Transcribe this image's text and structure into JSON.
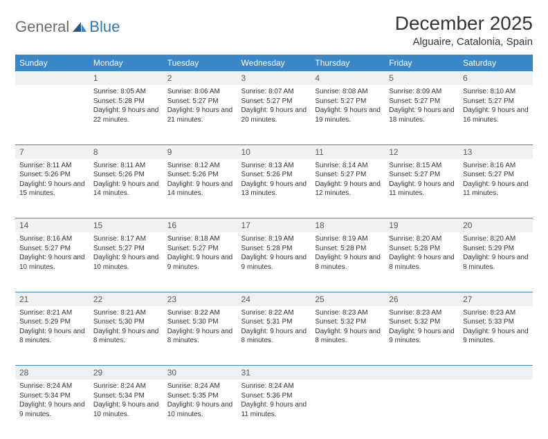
{
  "brand": {
    "part1": "General",
    "part2": "Blue"
  },
  "title": "December 2025",
  "location": "Alguaire, Catalonia, Spain",
  "colors": {
    "header_bg": "#3a87c7",
    "header_text": "#ffffff",
    "daynum_bg": "#eef0f2",
    "rule": "#3a87c7",
    "logo_gray": "#6b6b6b",
    "logo_blue": "#2f78b7"
  },
  "weekdays": [
    "Sunday",
    "Monday",
    "Tuesday",
    "Wednesday",
    "Thursday",
    "Friday",
    "Saturday"
  ],
  "weeks": [
    {
      "nums": [
        "",
        "1",
        "2",
        "3",
        "4",
        "5",
        "6"
      ],
      "cells": [
        {
          "sunrise": "",
          "sunset": "",
          "daylight": ""
        },
        {
          "sunrise": "Sunrise: 8:05 AM",
          "sunset": "Sunset: 5:28 PM",
          "daylight": "Daylight: 9 hours and 22 minutes."
        },
        {
          "sunrise": "Sunrise: 8:06 AM",
          "sunset": "Sunset: 5:27 PM",
          "daylight": "Daylight: 9 hours and 21 minutes."
        },
        {
          "sunrise": "Sunrise: 8:07 AM",
          "sunset": "Sunset: 5:27 PM",
          "daylight": "Daylight: 9 hours and 20 minutes."
        },
        {
          "sunrise": "Sunrise: 8:08 AM",
          "sunset": "Sunset: 5:27 PM",
          "daylight": "Daylight: 9 hours and 19 minutes."
        },
        {
          "sunrise": "Sunrise: 8:09 AM",
          "sunset": "Sunset: 5:27 PM",
          "daylight": "Daylight: 9 hours and 18 minutes."
        },
        {
          "sunrise": "Sunrise: 8:10 AM",
          "sunset": "Sunset: 5:27 PM",
          "daylight": "Daylight: 9 hours and 16 minutes."
        }
      ]
    },
    {
      "nums": [
        "7",
        "8",
        "9",
        "10",
        "11",
        "12",
        "13"
      ],
      "cells": [
        {
          "sunrise": "Sunrise: 8:11 AM",
          "sunset": "Sunset: 5:26 PM",
          "daylight": "Daylight: 9 hours and 15 minutes."
        },
        {
          "sunrise": "Sunrise: 8:11 AM",
          "sunset": "Sunset: 5:26 PM",
          "daylight": "Daylight: 9 hours and 14 minutes."
        },
        {
          "sunrise": "Sunrise: 8:12 AM",
          "sunset": "Sunset: 5:26 PM",
          "daylight": "Daylight: 9 hours and 14 minutes."
        },
        {
          "sunrise": "Sunrise: 8:13 AM",
          "sunset": "Sunset: 5:26 PM",
          "daylight": "Daylight: 9 hours and 13 minutes."
        },
        {
          "sunrise": "Sunrise: 8:14 AM",
          "sunset": "Sunset: 5:27 PM",
          "daylight": "Daylight: 9 hours and 12 minutes."
        },
        {
          "sunrise": "Sunrise: 8:15 AM",
          "sunset": "Sunset: 5:27 PM",
          "daylight": "Daylight: 9 hours and 11 minutes."
        },
        {
          "sunrise": "Sunrise: 8:16 AM",
          "sunset": "Sunset: 5:27 PM",
          "daylight": "Daylight: 9 hours and 11 minutes."
        }
      ]
    },
    {
      "nums": [
        "14",
        "15",
        "16",
        "17",
        "18",
        "19",
        "20"
      ],
      "cells": [
        {
          "sunrise": "Sunrise: 8:16 AM",
          "sunset": "Sunset: 5:27 PM",
          "daylight": "Daylight: 9 hours and 10 minutes."
        },
        {
          "sunrise": "Sunrise: 8:17 AM",
          "sunset": "Sunset: 5:27 PM",
          "daylight": "Daylight: 9 hours and 10 minutes."
        },
        {
          "sunrise": "Sunrise: 8:18 AM",
          "sunset": "Sunset: 5:27 PM",
          "daylight": "Daylight: 9 hours and 9 minutes."
        },
        {
          "sunrise": "Sunrise: 8:19 AM",
          "sunset": "Sunset: 5:28 PM",
          "daylight": "Daylight: 9 hours and 9 minutes."
        },
        {
          "sunrise": "Sunrise: 8:19 AM",
          "sunset": "Sunset: 5:28 PM",
          "daylight": "Daylight: 9 hours and 8 minutes."
        },
        {
          "sunrise": "Sunrise: 8:20 AM",
          "sunset": "Sunset: 5:28 PM",
          "daylight": "Daylight: 9 hours and 8 minutes."
        },
        {
          "sunrise": "Sunrise: 8:20 AM",
          "sunset": "Sunset: 5:29 PM",
          "daylight": "Daylight: 9 hours and 8 minutes."
        }
      ]
    },
    {
      "nums": [
        "21",
        "22",
        "23",
        "24",
        "25",
        "26",
        "27"
      ],
      "cells": [
        {
          "sunrise": "Sunrise: 8:21 AM",
          "sunset": "Sunset: 5:29 PM",
          "daylight": "Daylight: 9 hours and 8 minutes."
        },
        {
          "sunrise": "Sunrise: 8:21 AM",
          "sunset": "Sunset: 5:30 PM",
          "daylight": "Daylight: 9 hours and 8 minutes."
        },
        {
          "sunrise": "Sunrise: 8:22 AM",
          "sunset": "Sunset: 5:30 PM",
          "daylight": "Daylight: 9 hours and 8 minutes."
        },
        {
          "sunrise": "Sunrise: 8:22 AM",
          "sunset": "Sunset: 5:31 PM",
          "daylight": "Daylight: 9 hours and 8 minutes."
        },
        {
          "sunrise": "Sunrise: 8:23 AM",
          "sunset": "Sunset: 5:32 PM",
          "daylight": "Daylight: 9 hours and 8 minutes."
        },
        {
          "sunrise": "Sunrise: 8:23 AM",
          "sunset": "Sunset: 5:32 PM",
          "daylight": "Daylight: 9 hours and 9 minutes."
        },
        {
          "sunrise": "Sunrise: 8:23 AM",
          "sunset": "Sunset: 5:33 PM",
          "daylight": "Daylight: 9 hours and 9 minutes."
        }
      ]
    },
    {
      "nums": [
        "28",
        "29",
        "30",
        "31",
        "",
        "",
        ""
      ],
      "cells": [
        {
          "sunrise": "Sunrise: 8:24 AM",
          "sunset": "Sunset: 5:34 PM",
          "daylight": "Daylight: 9 hours and 9 minutes."
        },
        {
          "sunrise": "Sunrise: 8:24 AM",
          "sunset": "Sunset: 5:34 PM",
          "daylight": "Daylight: 9 hours and 10 minutes."
        },
        {
          "sunrise": "Sunrise: 8:24 AM",
          "sunset": "Sunset: 5:35 PM",
          "daylight": "Daylight: 9 hours and 10 minutes."
        },
        {
          "sunrise": "Sunrise: 8:24 AM",
          "sunset": "Sunset: 5:36 PM",
          "daylight": "Daylight: 9 hours and 11 minutes."
        },
        {
          "sunrise": "",
          "sunset": "",
          "daylight": ""
        },
        {
          "sunrise": "",
          "sunset": "",
          "daylight": ""
        },
        {
          "sunrise": "",
          "sunset": "",
          "daylight": ""
        }
      ]
    }
  ]
}
